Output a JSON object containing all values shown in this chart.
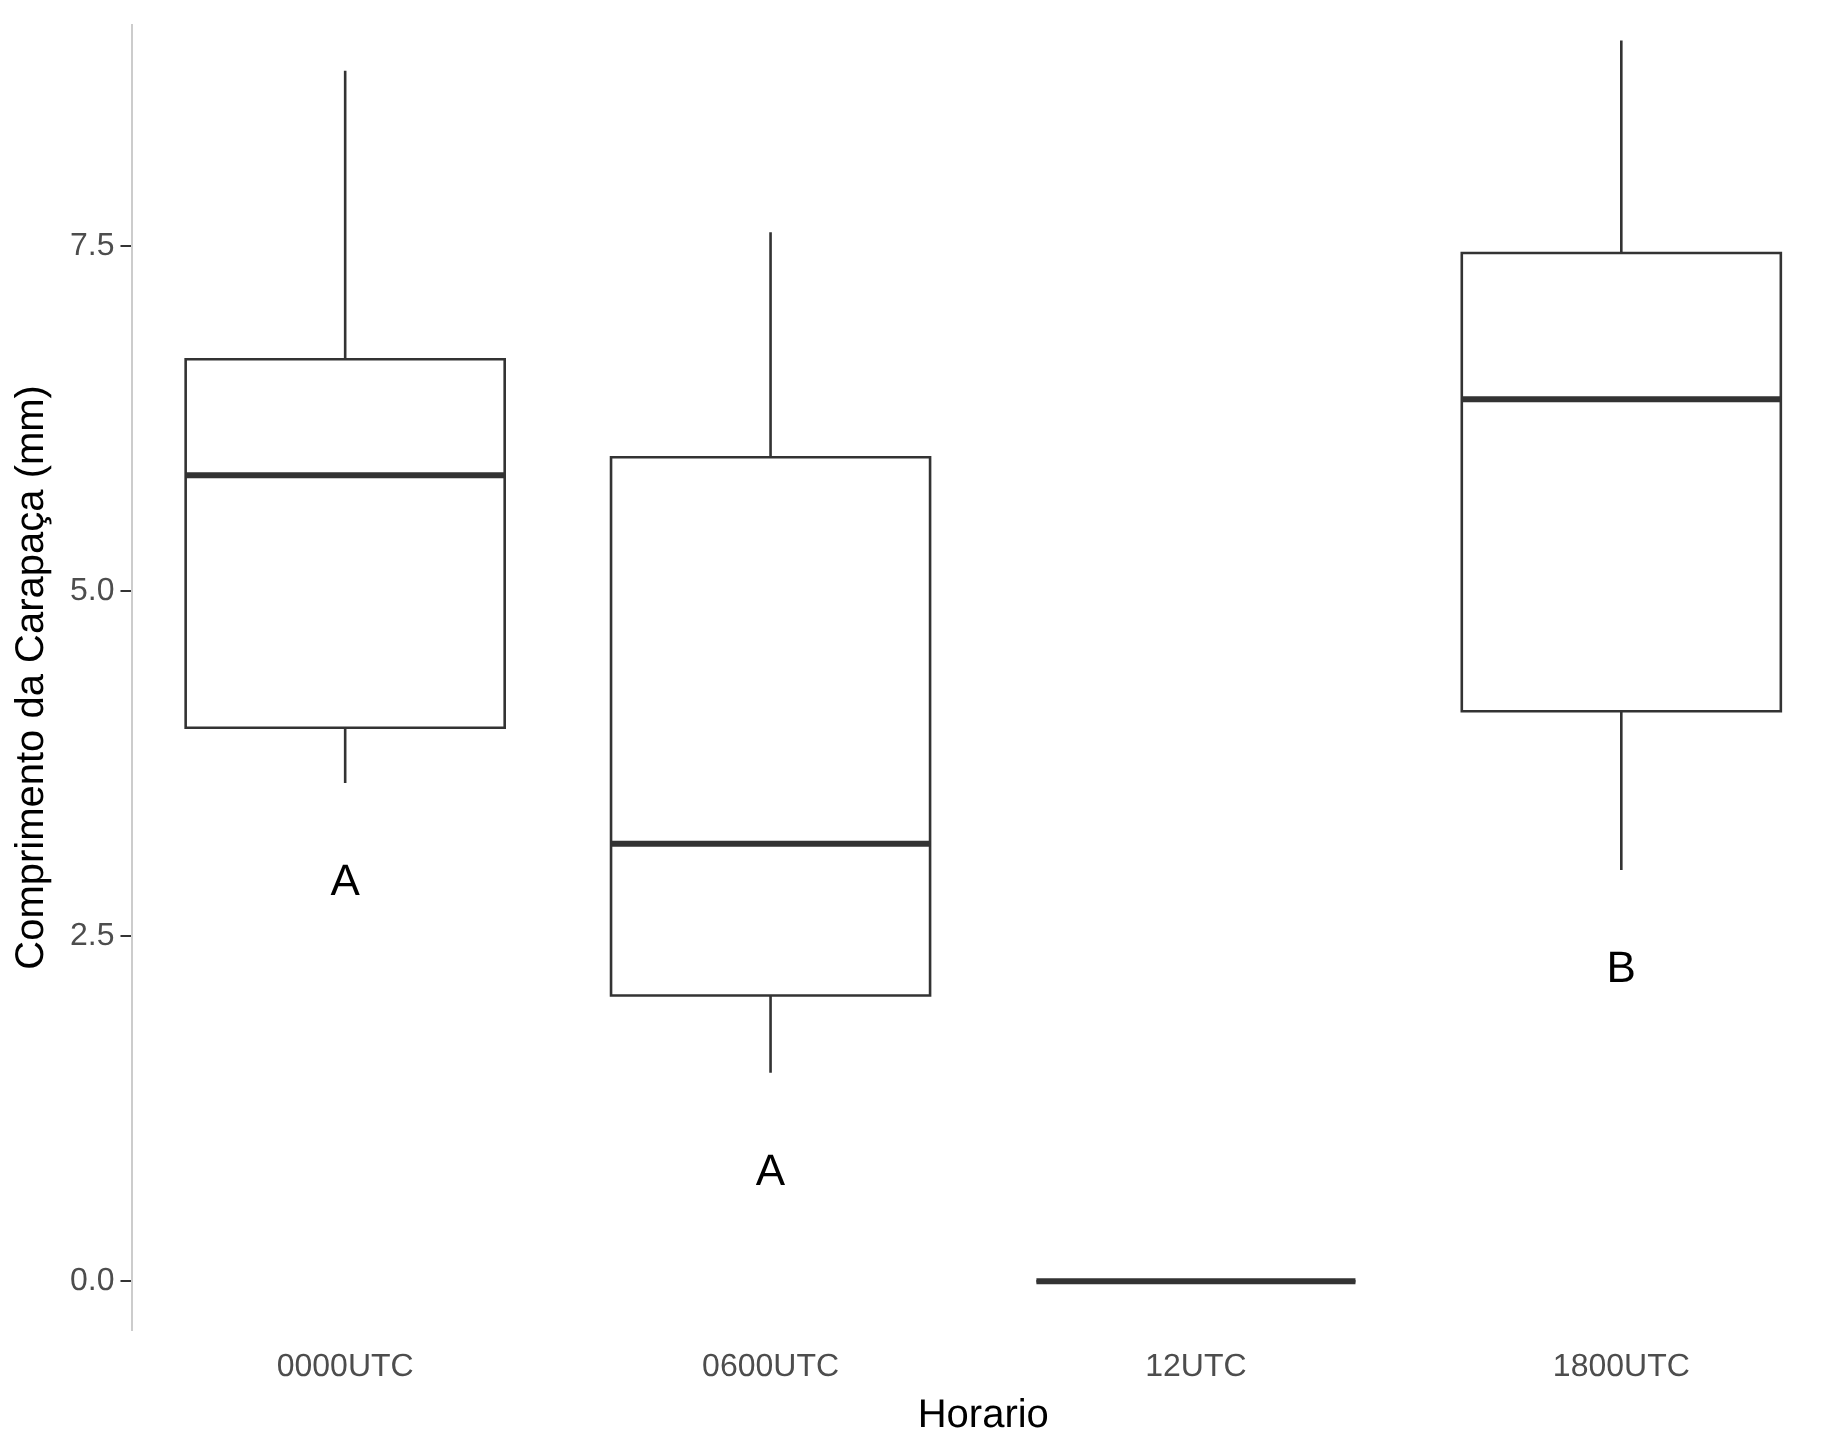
{
  "chart_data": {
    "type": "box",
    "xlabel": "Horario",
    "ylabel": "Comprimento da Carapaça (mm)",
    "categories": [
      "0000UTC",
      "0600UTC",
      "12UTC",
      "1800UTC"
    ],
    "boxes": [
      {
        "low": 3.61,
        "q1": 4.01,
        "median": 5.84,
        "q3": 6.68,
        "high": 8.77
      },
      {
        "low": 1.51,
        "q1": 2.07,
        "median": 3.17,
        "q3": 5.97,
        "high": 7.6
      },
      {
        "low": 0,
        "q1": 0,
        "median": 0,
        "q3": 0,
        "high": 0
      },
      {
        "low": 2.98,
        "q1": 4.13,
        "median": 6.39,
        "q3": 7.45,
        "high": 8.99
      }
    ],
    "ylim": [
      -0.35,
      9.1
    ],
    "yticks": [
      {
        "value": 0,
        "label": "0.0"
      },
      {
        "value": 2.5,
        "label": "2.5"
      },
      {
        "value": 5,
        "label": "5.0"
      },
      {
        "value": 7.5,
        "label": "7.5"
      }
    ],
    "annotations": [
      "A",
      "A",
      "B"
    ],
    "grid": false,
    "legend": false
  }
}
